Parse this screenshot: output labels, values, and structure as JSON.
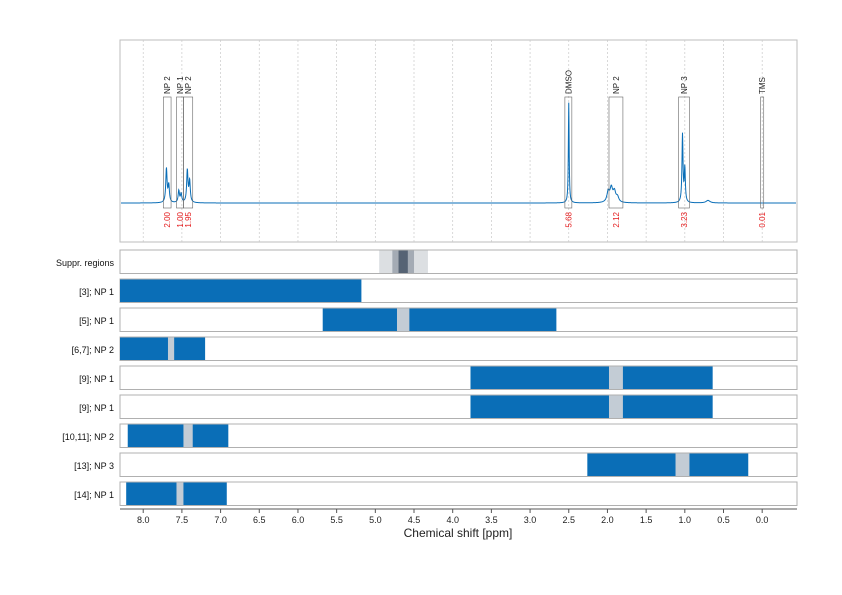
{
  "chart_data": {
    "type": "bar",
    "xlabel": "Chemical shift [ppm]",
    "xlim": [
      8.3,
      -0.45
    ],
    "x_ticks": [
      "8.0",
      "7.5",
      "7.0",
      "6.5",
      "6.0",
      "5.5",
      "5.0",
      "4.5",
      "4.0",
      "3.5",
      "3.0",
      "2.5",
      "2.0",
      "1.5",
      "1.0",
      "0.5",
      "0.0"
    ],
    "x_tick_values": [
      8.0,
      7.5,
      7.0,
      6.5,
      6.0,
      5.5,
      5.0,
      4.5,
      4.0,
      3.5,
      3.0,
      2.5,
      2.0,
      1.5,
      1.0,
      0.5,
      0.0
    ],
    "grid": true,
    "spectrum": {
      "peaks": [
        {
          "center": 7.7,
          "height": 0.4,
          "width": 0.01
        },
        {
          "center": 7.67,
          "height": 0.2,
          "width": 0.01
        },
        {
          "center": 7.54,
          "height": 0.14,
          "width": 0.01
        },
        {
          "center": 7.51,
          "height": 0.1,
          "width": 0.01
        },
        {
          "center": 7.43,
          "height": 0.38,
          "width": 0.01
        },
        {
          "center": 7.4,
          "height": 0.25,
          "width": 0.01
        },
        {
          "center": 2.5,
          "height": 1.18,
          "width": 0.006
        },
        {
          "center": 1.99,
          "height": 0.12,
          "width": 0.02
        },
        {
          "center": 1.95,
          "height": 0.16,
          "width": 0.02
        },
        {
          "center": 1.91,
          "height": 0.12,
          "width": 0.02
        },
        {
          "center": 1.87,
          "height": 0.06,
          "width": 0.02
        },
        {
          "center": 1.03,
          "height": 0.8,
          "width": 0.008
        },
        {
          "center": 1.0,
          "height": 0.4,
          "width": 0.008
        },
        {
          "center": 0.7,
          "height": 0.03,
          "width": 0.03
        }
      ],
      "signals": [
        {
          "label": "NP 2",
          "xmin": 7.64,
          "xmax": 7.74,
          "integral": "2.00"
        },
        {
          "label": "NP 1",
          "xmin": 7.48,
          "xmax": 7.57,
          "integral": "1.00"
        },
        {
          "label": "NP 2",
          "xmin": 7.36,
          "xmax": 7.48,
          "integral": "1.95"
        },
        {
          "label": "DMSO",
          "xmin": 2.46,
          "xmax": 2.55,
          "integral": "5.68"
        },
        {
          "label": "NP 2",
          "xmin": 1.8,
          "xmax": 1.98,
          "integral": "2.12"
        },
        {
          "label": "NP 3",
          "xmin": 0.94,
          "xmax": 1.08,
          "integral": "3.23"
        },
        {
          "label": "TMS",
          "xmin": -0.02,
          "xmax": 0.02,
          "integral": "0.01"
        }
      ]
    },
    "suppressed_regions": {
      "label": "Suppr. regions",
      "bands": [
        {
          "xmin": 4.32,
          "xmax": 4.95,
          "shade": 0.18
        },
        {
          "xmin": 4.5,
          "xmax": 4.78,
          "shade": 0.35
        },
        {
          "xmin": 4.58,
          "xmax": 4.7,
          "shade": 0.75
        }
      ]
    },
    "rows": [
      {
        "label": "[3]; NP 1",
        "xmin": 5.18,
        "xmax": 8.3,
        "gap": null
      },
      {
        "label": "[5]; NP 1",
        "xmin": 2.66,
        "xmax": 5.68,
        "gap": [
          4.56,
          4.72
        ]
      },
      {
        "label": "[6,7]; NP 2",
        "xmin": 7.2,
        "xmax": 8.3,
        "gap": [
          7.6,
          7.68
        ]
      },
      {
        "label": "[9]; NP 1",
        "xmin": 0.64,
        "xmax": 3.77,
        "gap": [
          1.8,
          1.98
        ]
      },
      {
        "label": "[9]; NP 1",
        "xmin": 0.64,
        "xmax": 3.77,
        "gap": [
          1.8,
          1.98
        ]
      },
      {
        "label": "[10,11]; NP 2",
        "xmin": 6.9,
        "xmax": 8.2,
        "gap": [
          7.36,
          7.48
        ]
      },
      {
        "label": "[13]; NP 3",
        "xmin": 0.18,
        "xmax": 2.26,
        "gap": [
          0.94,
          1.12
        ]
      },
      {
        "label": "[14]; NP 1",
        "xmin": 6.92,
        "xmax": 8.22,
        "gap": [
          7.48,
          7.57
        ]
      }
    ]
  }
}
